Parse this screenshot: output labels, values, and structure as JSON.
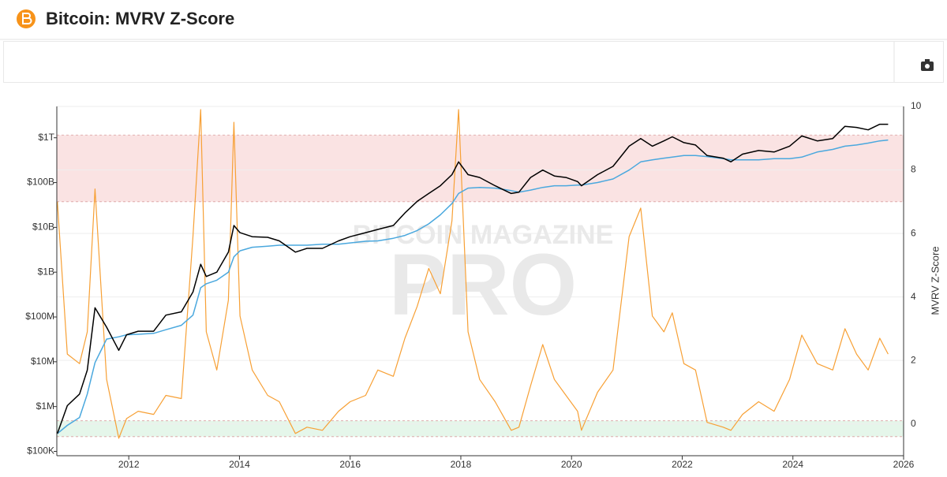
{
  "chart_data": {
    "type": "line",
    "title": "Bitcoin: MVRV Z-Score",
    "watermark": [
      "BITCOIN MAGAZINE",
      "PRO"
    ],
    "y2label": "MVRV Z-Score",
    "x": [
      2010.71,
      2010.89,
      2011.11,
      2011.25,
      2011.39,
      2011.6,
      2011.82,
      2011.96,
      2012.17,
      2012.45,
      2012.67,
      2012.95,
      2013.16,
      2013.3,
      2013.4,
      2013.59,
      2013.8,
      2013.9,
      2014.01,
      2014.23,
      2014.51,
      2014.72,
      2015.01,
      2015.22,
      2015.5,
      2015.79,
      2016.0,
      2016.28,
      2016.5,
      2016.78,
      2016.99,
      2017.21,
      2017.42,
      2017.63,
      2017.84,
      2017.96,
      2018.13,
      2018.34,
      2018.62,
      2018.91,
      2019.05,
      2019.26,
      2019.48,
      2019.69,
      2019.9,
      2020.11,
      2020.18,
      2020.47,
      2020.75,
      2021.04,
      2021.25,
      2021.46,
      2021.67,
      2021.82,
      2022.03,
      2022.24,
      2022.45,
      2022.74,
      2022.88,
      2023.09,
      2023.38,
      2023.66,
      2023.94,
      2024.16,
      2024.44,
      2024.72,
      2024.94,
      2025.15,
      2025.36,
      2025.57,
      2025.72
    ],
    "xlim": [
      2010.7,
      2026
    ],
    "xticks": [
      2012,
      2014,
      2016,
      2018,
      2020,
      2022,
      2024,
      2026
    ],
    "log_scale_y": true,
    "ylim": [
      80000,
      5000000000000
    ],
    "yticks": [
      {
        "value": 100000,
        "label": "$100K"
      },
      {
        "value": 1000000,
        "label": "$1M"
      },
      {
        "value": 10000000,
        "label": "$10M"
      },
      {
        "value": 100000000,
        "label": "$100M"
      },
      {
        "value": 1000000000,
        "label": "$1B"
      },
      {
        "value": 10000000000,
        "label": "$10B"
      },
      {
        "value": 100000000000,
        "label": "$100B"
      },
      {
        "value": 1000000000000,
        "label": "$1T"
      }
    ],
    "y2lim": [
      -1,
      10
    ],
    "y2ticks": [
      0,
      2,
      4,
      6,
      8,
      10
    ],
    "zones": [
      {
        "from": 7,
        "to": 9.1,
        "color": "#fae3e3"
      },
      {
        "from": -0.4,
        "to": 0.1,
        "color": "#e5f6ea"
      }
    ],
    "series": [
      {
        "color": "#000000",
        "values": [
          250000,
          1050000,
          1900000,
          6500000,
          160000000,
          59000000,
          18000000,
          40000000,
          48000000,
          48000000,
          110000000,
          130000000,
          360000000,
          1500000000,
          800000000,
          1000000000,
          2800000000,
          11000000000,
          7600000000,
          6200000000,
          6000000000,
          5000000000,
          2800000000,
          3400000000,
          3400000000,
          5000000000,
          6200000000,
          7600000000,
          9000000000,
          11000000000,
          21000000000,
          38000000000,
          57000000000,
          85000000000,
          150000000000,
          290000000000,
          150000000000,
          130000000000,
          85000000000,
          57000000000,
          61000000000,
          130000000000,
          190000000000,
          140000000000,
          130000000000,
          105000000000,
          85000000000,
          150000000000,
          230000000000,
          650000000000,
          960000000000,
          650000000000,
          850000000000,
          1050000000000,
          780000000000,
          690000000000,
          400000000000,
          350000000000,
          290000000000,
          430000000000,
          520000000000,
          480000000000,
          650000000000,
          1100000000000,
          850000000000,
          960000000000,
          1800000000000,
          1700000000000,
          1500000000000,
          2000000000000,
          2000000000000
        ]
      },
      {
        "color": "#4aa8de",
        "values": [
          250000,
          380000,
          570000,
          1900000,
          9600000,
          32000000,
          36000000,
          40000000,
          41000000,
          43000000,
          52000000,
          65000000,
          110000000,
          450000000,
          550000000,
          660000000,
          1000000000,
          2200000000,
          3000000000,
          3600000000,
          3800000000,
          4000000000,
          4000000000,
          4000000000,
          4200000000,
          4200000000,
          4500000000,
          4900000000,
          5000000000,
          5700000000,
          6600000000,
          8500000000,
          12000000000,
          19000000000,
          34000000000,
          57000000000,
          75000000000,
          78000000000,
          75000000000,
          66000000000,
          61000000000,
          68000000000,
          78000000000,
          85000000000,
          85000000000,
          88000000000,
          88000000000,
          100000000000,
          120000000000,
          190000000000,
          290000000000,
          320000000000,
          350000000000,
          370000000000,
          400000000000,
          400000000000,
          380000000000,
          340000000000,
          320000000000,
          320000000000,
          320000000000,
          340000000000,
          340000000000,
          370000000000,
          480000000000,
          550000000000,
          650000000000,
          690000000000,
          760000000000,
          850000000000,
          890000000000
        ]
      },
      {
        "color": "#f7a035",
        "axis": "y2",
        "values": [
          7.0,
          2.2,
          1.9,
          2.9,
          7.4,
          1.4,
          -0.45,
          0.17,
          0.4,
          0.3,
          0.9,
          0.8,
          5.9,
          9.9,
          2.9,
          1.7,
          3.9,
          9.5,
          3.4,
          1.7,
          0.9,
          0.7,
          -0.3,
          -0.1,
          -0.2,
          0.4,
          0.7,
          0.9,
          1.7,
          1.5,
          2.7,
          3.7,
          4.9,
          4.1,
          6.4,
          9.9,
          2.9,
          1.4,
          0.7,
          -0.2,
          -0.1,
          1.2,
          2.5,
          1.4,
          0.9,
          0.4,
          -0.2,
          1.0,
          1.7,
          5.9,
          6.8,
          3.4,
          2.9,
          3.5,
          1.9,
          1.7,
          0.05,
          -0.1,
          -0.2,
          0.3,
          0.7,
          0.4,
          1.4,
          2.8,
          1.9,
          1.7,
          3.0,
          2.2,
          1.7,
          2.7,
          2.2
        ]
      }
    ]
  }
}
